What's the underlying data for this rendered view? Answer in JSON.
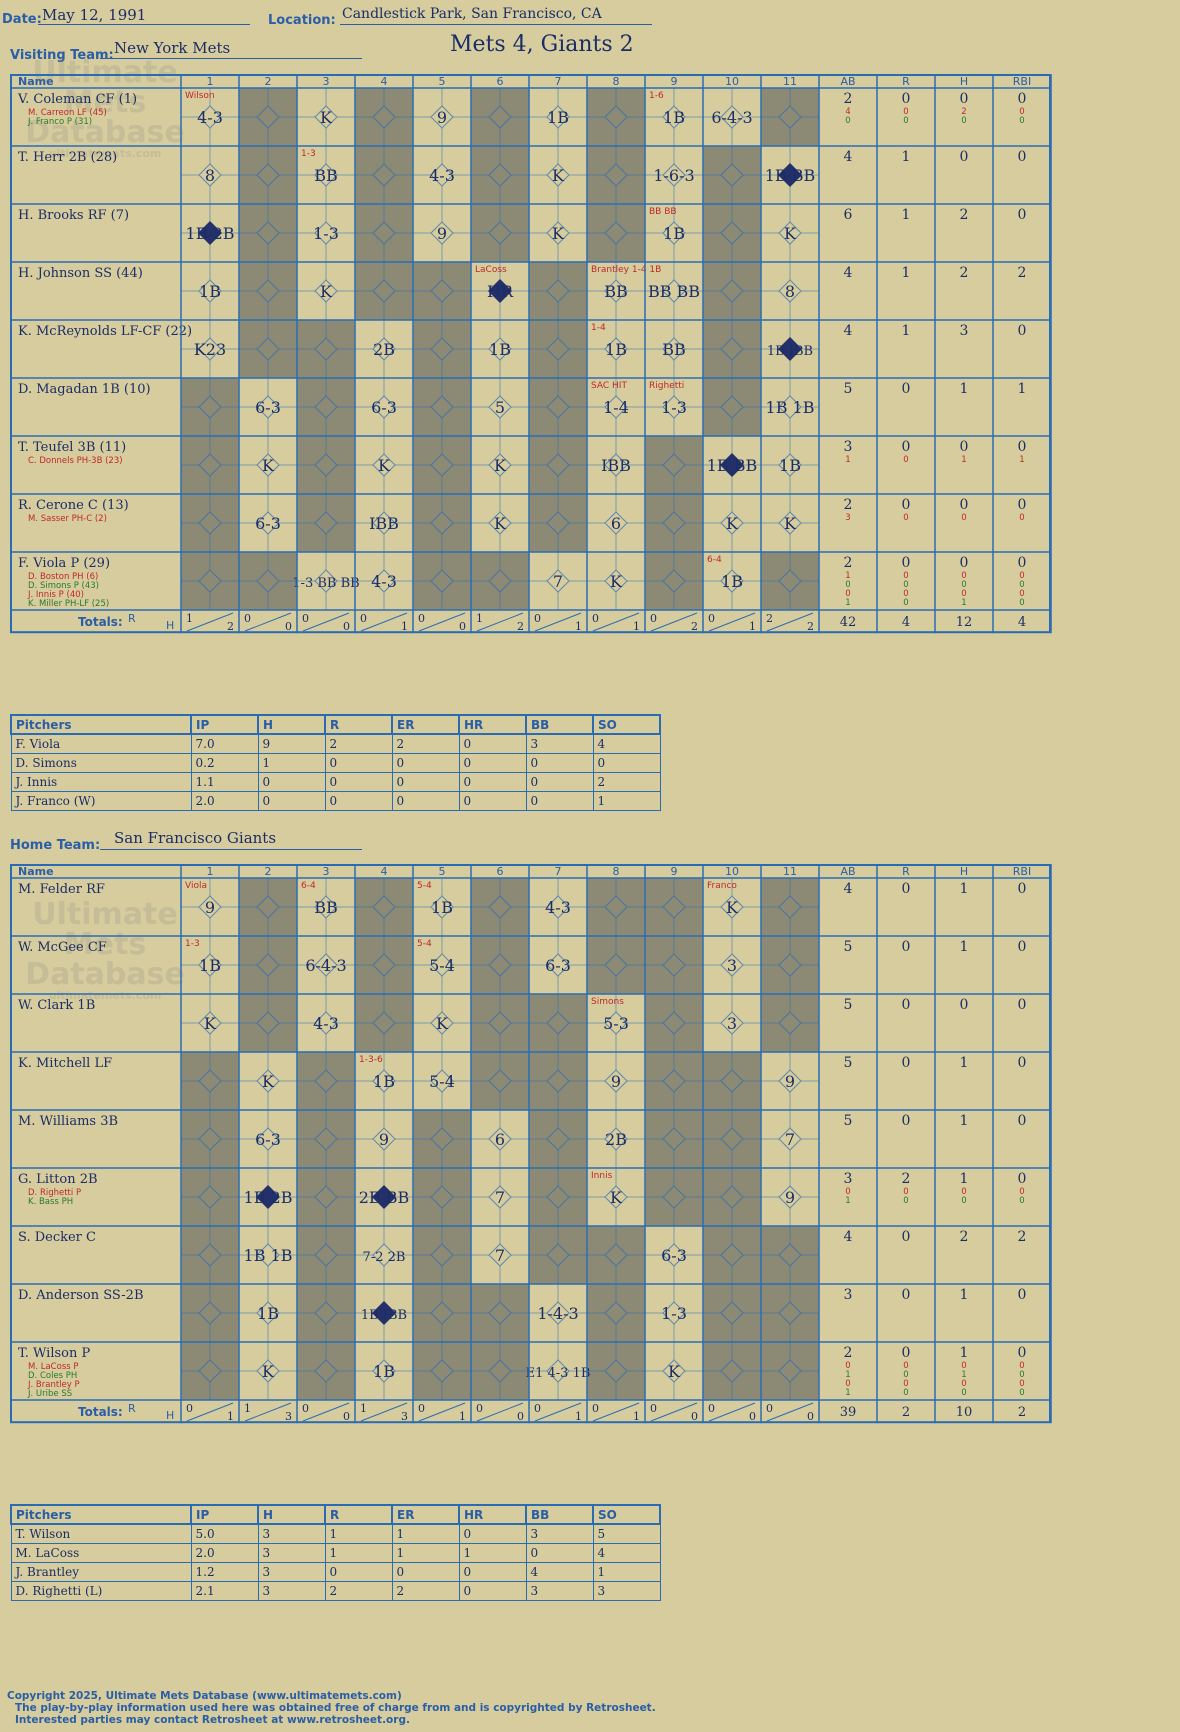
{
  "header": {
    "date_label": "Date:",
    "date": "May 12, 1991",
    "location_label": "Location:",
    "location": "Candlestick Park, San Francisco, CA",
    "visiting_label": "Visiting Team:",
    "visiting_team": "New York Mets",
    "home_label": "Home Team:",
    "home_team": "San Francisco Giants",
    "result": "Mets 4, Giants 2"
  },
  "columns": {
    "name": "Name",
    "innings": [
      "1",
      "2",
      "3",
      "4",
      "5",
      "6",
      "7",
      "8",
      "9",
      "10",
      "11"
    ],
    "stats": [
      "AB",
      "R",
      "H",
      "RBI"
    ],
    "totals_label": "Totals:",
    "rh": [
      "R",
      "H"
    ]
  },
  "watermark": {
    "line1": "Ultimate",
    "line2": "Mets",
    "line3": "Database",
    "url": "ultimatemets.com"
  },
  "visitors": {
    "players": [
      {
        "name": "V. Coleman CF (1)",
        "subs": [
          "M. Carreon LF (45)",
          "J. Franco P (31)"
        ],
        "ab": "2",
        "r": "0",
        "h": "0",
        "rbi": "0",
        "sub_stats": [
          [
            "4",
            "0",
            "2",
            "0"
          ],
          [
            "0",
            "0",
            "0",
            "0"
          ]
        ],
        "cells": [
          [
            1,
            "4-3",
            "Wilson"
          ],
          [
            3,
            "K"
          ],
          [
            5,
            "9"
          ],
          [
            7,
            "1B"
          ],
          [
            9,
            "1B",
            "1-6"
          ],
          [
            10,
            "6-4-3"
          ]
        ]
      },
      {
        "name": "T. Herr 2B (28)",
        "subs": [],
        "ab": "4",
        "r": "1",
        "h": "0",
        "rbi": "0",
        "sub_stats": [],
        "cells": [
          [
            1,
            "8"
          ],
          [
            3,
            "BB",
            "1-3"
          ],
          [
            5,
            "4-3"
          ],
          [
            7,
            "K"
          ],
          [
            9,
            "1-6-3"
          ],
          [
            11,
            "1B BB"
          ]
        ]
      },
      {
        "name": "H. Brooks RF (7)",
        "subs": [],
        "ab": "6",
        "r": "1",
        "h": "2",
        "rbi": "0",
        "sub_stats": [],
        "cells": [
          [
            1,
            "1B 2B"
          ],
          [
            3,
            "1-3"
          ],
          [
            5,
            "9"
          ],
          [
            7,
            "K"
          ],
          [
            9,
            "1B",
            "BB BB"
          ],
          [
            11,
            "K"
          ]
        ]
      },
      {
        "name": "H. Johnson SS (44)",
        "subs": [],
        "ab": "4",
        "r": "1",
        "h": "2",
        "rbi": "2",
        "sub_stats": [],
        "cells": [
          [
            1,
            "1B"
          ],
          [
            3,
            "K"
          ],
          [
            6,
            "HR",
            "LaCoss"
          ],
          [
            8,
            "BB",
            "Brantley 1-4 1B"
          ],
          [
            9,
            "BB BB"
          ],
          [
            11,
            "8"
          ]
        ]
      },
      {
        "name": "K. McReynolds LF-CF (22)",
        "subs": [],
        "ab": "4",
        "r": "1",
        "h": "3",
        "rbi": "0",
        "sub_stats": [],
        "cells": [
          [
            1,
            "K23"
          ],
          [
            4,
            "2B"
          ],
          [
            6,
            "1B"
          ],
          [
            8,
            "1B",
            "1-4"
          ],
          [
            9,
            "BB"
          ],
          [
            11,
            "1B IBB"
          ]
        ]
      },
      {
        "name": "D. Magadan 1B (10)",
        "subs": [],
        "ab": "5",
        "r": "0",
        "h": "1",
        "rbi": "1",
        "sub_stats": [],
        "cells": [
          [
            2,
            "6-3"
          ],
          [
            4,
            "6-3"
          ],
          [
            6,
            "5"
          ],
          [
            8,
            "1-4",
            "SAC HIT"
          ],
          [
            9,
            "1-3",
            "Righetti"
          ],
          [
            11,
            "1B 1B"
          ]
        ]
      },
      {
        "name": "T. Teufel 3B (11)",
        "subs": [
          "C. Donnels PH-3B (23)"
        ],
        "ab": "3",
        "r": "0",
        "h": "0",
        "rbi": "0",
        "sub_stats": [
          [
            "1",
            "0",
            "1",
            "1"
          ]
        ],
        "cells": [
          [
            2,
            "K"
          ],
          [
            4,
            "K"
          ],
          [
            6,
            "K"
          ],
          [
            8,
            "IBB"
          ],
          [
            10,
            "1B BB"
          ],
          [
            11,
            "1B"
          ]
        ]
      },
      {
        "name": "R. Cerone C (13)",
        "subs": [
          "M. Sasser PH-C (2)"
        ],
        "ab": "2",
        "r": "0",
        "h": "0",
        "rbi": "0",
        "sub_stats": [
          [
            "3",
            "0",
            "0",
            "0"
          ]
        ],
        "cells": [
          [
            2,
            "6-3"
          ],
          [
            4,
            "IBB"
          ],
          [
            6,
            "K"
          ],
          [
            8,
            "6"
          ],
          [
            10,
            "K"
          ],
          [
            11,
            "K"
          ]
        ]
      },
      {
        "name": "F. Viola P (29)",
        "subs": [
          "D. Boston PH (6)",
          "D. Simons P (43)",
          "J. Innis P (40)",
          "K. Miller PH-LF (25)"
        ],
        "ab": "2",
        "r": "0",
        "h": "0",
        "rbi": "0",
        "sub_stats": [
          [
            "1",
            "0",
            "0",
            "0"
          ],
          [
            "0",
            "0",
            "0",
            "0"
          ],
          [
            "0",
            "0",
            "0",
            "0"
          ],
          [
            "1",
            "0",
            "1",
            "0"
          ]
        ],
        "cells": [
          [
            3,
            "1-3 BB BB"
          ],
          [
            4,
            "4-3"
          ],
          [
            7,
            "7"
          ],
          [
            8,
            "K"
          ],
          [
            10,
            "1B",
            "6-4"
          ]
        ]
      }
    ],
    "totals": [
      [
        "1",
        "2"
      ],
      [
        "0",
        "0"
      ],
      [
        "0",
        "0"
      ],
      [
        "0",
        "1"
      ],
      [
        "0",
        "0"
      ],
      [
        "1",
        "2"
      ],
      [
        "0",
        "1"
      ],
      [
        "0",
        "1"
      ],
      [
        "0",
        "2"
      ],
      [
        "0",
        "1"
      ],
      [
        "2",
        "2"
      ]
    ],
    "stat_totals": [
      "42",
      "4",
      "12",
      "4"
    ],
    "pitchers": {
      "header": [
        "Pitchers",
        "IP",
        "H",
        "R",
        "ER",
        "HR",
        "BB",
        "SO"
      ],
      "rows": [
        [
          "F. Viola",
          "7.0",
          "9",
          "2",
          "2",
          "0",
          "3",
          "4"
        ],
        [
          "D. Simons",
          "0.2",
          "1",
          "0",
          "0",
          "0",
          "0",
          "0"
        ],
        [
          "J. Innis",
          "1.1",
          "0",
          "0",
          "0",
          "0",
          "0",
          "2"
        ],
        [
          "J. Franco (W)",
          "2.0",
          "0",
          "0",
          "0",
          "0",
          "0",
          "1"
        ]
      ]
    }
  },
  "home": {
    "players": [
      {
        "name": "M. Felder RF",
        "subs": [],
        "ab": "4",
        "r": "0",
        "h": "1",
        "rbi": "0",
        "sub_stats": [],
        "cells": [
          [
            1,
            "9",
            "Viola"
          ],
          [
            3,
            "BB",
            "6-4"
          ],
          [
            5,
            "1B",
            "5-4"
          ],
          [
            7,
            "4-3"
          ],
          [
            10,
            "K",
            "Franco"
          ]
        ]
      },
      {
        "name": "W. McGee CF",
        "subs": [],
        "ab": "5",
        "r": "0",
        "h": "1",
        "rbi": "0",
        "sub_stats": [],
        "cells": [
          [
            1,
            "1B",
            "1-3"
          ],
          [
            3,
            "6-4-3"
          ],
          [
            5,
            "5-4",
            "5-4"
          ],
          [
            7,
            "6-3"
          ],
          [
            10,
            "3"
          ]
        ]
      },
      {
        "name": "W. Clark 1B",
        "subs": [],
        "ab": "5",
        "r": "0",
        "h": "0",
        "rbi": "0",
        "sub_stats": [],
        "cells": [
          [
            1,
            "K"
          ],
          [
            3,
            "4-3"
          ],
          [
            5,
            "K"
          ],
          [
            8,
            "5-3",
            "Simons"
          ],
          [
            10,
            "3"
          ]
        ]
      },
      {
        "name": "K. Mitchell LF",
        "subs": [],
        "ab": "5",
        "r": "0",
        "h": "1",
        "rbi": "0",
        "sub_stats": [],
        "cells": [
          [
            2,
            "K"
          ],
          [
            4,
            "1B",
            "1-3-6"
          ],
          [
            5,
            "5-4"
          ],
          [
            8,
            "9"
          ],
          [
            11,
            "9"
          ]
        ]
      },
      {
        "name": "M. Williams 3B",
        "subs": [],
        "ab": "5",
        "r": "0",
        "h": "1",
        "rbi": "0",
        "sub_stats": [],
        "cells": [
          [
            2,
            "6-3"
          ],
          [
            4,
            "9"
          ],
          [
            6,
            "6"
          ],
          [
            8,
            "2B"
          ],
          [
            11,
            "7"
          ]
        ]
      },
      {
        "name": "G. Litton 2B",
        "subs": [
          "D. Righetti P",
          "K. Bass PH"
        ],
        "ab": "3",
        "r": "2",
        "h": "1",
        "rbi": "0",
        "sub_stats": [
          [
            "0",
            "0",
            "0",
            "0"
          ],
          [
            "1",
            "0",
            "0",
            "0"
          ]
        ],
        "cells": [
          [
            2,
            "1B 2B"
          ],
          [
            4,
            "2B BB"
          ],
          [
            6,
            "7"
          ],
          [
            8,
            "K",
            "Innis"
          ],
          [
            11,
            "9"
          ]
        ]
      },
      {
        "name": "S. Decker C",
        "subs": [],
        "ab": "4",
        "r": "0",
        "h": "2",
        "rbi": "2",
        "sub_stats": [],
        "cells": [
          [
            2,
            "1B 1B"
          ],
          [
            4,
            "7-2 2B"
          ],
          [
            6,
            "7"
          ],
          [
            9,
            "6-3"
          ]
        ]
      },
      {
        "name": "D. Anderson SS-2B",
        "subs": [],
        "ab": "3",
        "r": "0",
        "h": "1",
        "rbi": "0",
        "sub_stats": [],
        "cells": [
          [
            2,
            "1B"
          ],
          [
            4,
            "1B IBB"
          ],
          [
            7,
            "1-4-3"
          ],
          [
            9,
            "1-3"
          ]
        ]
      },
      {
        "name": "T. Wilson P",
        "subs": [
          "M. LaCoss P",
          "D. Coles PH",
          "J. Brantley P",
          "J. Uribe SS"
        ],
        "ab": "2",
        "r": "0",
        "h": "1",
        "rbi": "0",
        "sub_stats": [
          [
            "0",
            "0",
            "0",
            "0"
          ],
          [
            "1",
            "0",
            "1",
            "0"
          ],
          [
            "0",
            "0",
            "0",
            "0"
          ],
          [
            "1",
            "0",
            "0",
            "0"
          ]
        ],
        "cells": [
          [
            2,
            "K"
          ],
          [
            4,
            "1B"
          ],
          [
            7,
            "E1 4-3 1B"
          ],
          [
            9,
            "K"
          ]
        ]
      }
    ],
    "totals": [
      [
        "0",
        "1"
      ],
      [
        "1",
        "3"
      ],
      [
        "0",
        "0"
      ],
      [
        "1",
        "3"
      ],
      [
        "0",
        "1"
      ],
      [
        "0",
        "0"
      ],
      [
        "0",
        "1"
      ],
      [
        "0",
        "1"
      ],
      [
        "0",
        "0"
      ],
      [
        "0",
        "0"
      ],
      [
        "0",
        "0"
      ]
    ],
    "stat_totals": [
      "39",
      "2",
      "10",
      "2"
    ],
    "pitchers": {
      "header": [
        "Pitchers",
        "IP",
        "H",
        "R",
        "ER",
        "HR",
        "BB",
        "SO"
      ],
      "rows": [
        [
          "T. Wilson",
          "5.0",
          "3",
          "1",
          "1",
          "0",
          "3",
          "5"
        ],
        [
          "M. LaCoss",
          "2.0",
          "3",
          "1",
          "1",
          "1",
          "0",
          "4"
        ],
        [
          "J. Brantley",
          "1.2",
          "3",
          "0",
          "0",
          "0",
          "4",
          "1"
        ],
        [
          "D. Righetti (L)",
          "2.1",
          "3",
          "2",
          "2",
          "0",
          "3",
          "3"
        ]
      ]
    }
  },
  "footer": {
    "line1": "Copyright 2025, Ultimate Mets Database (www.ultimatemets.com)",
    "line2": "The play-by-play information used here was obtained free of charge from and is copyrighted by Retrosheet.",
    "line3": "Interested parties may contact Retrosheet at www.retrosheet.org."
  },
  "colors": {
    "paper": "#d6cc9e",
    "grid": "#2a6cb3",
    "shade": "#8c8a74",
    "ink": "#1b2d66",
    "red": "#c0282a",
    "green": "#2a7a2a"
  }
}
